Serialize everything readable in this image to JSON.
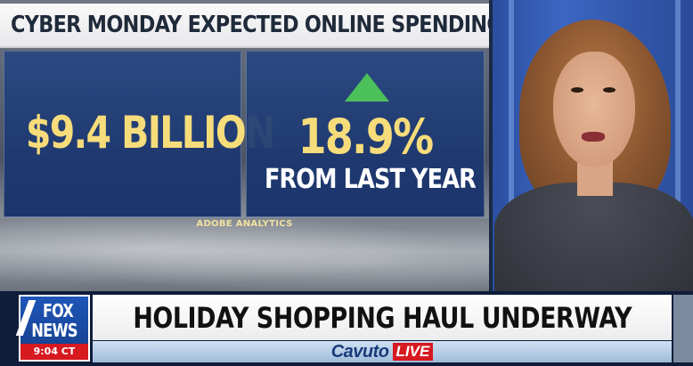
{
  "graphic": {
    "headline": "CYBER MONDAY EXPECTED ONLINE SPENDING",
    "amount": "$9.4 BILLION",
    "change_percent": "18.9%",
    "change_label": "FROM LAST YEAR",
    "trend_icon": "up-triangle-icon",
    "source": "ADOBE ANALYTICS"
  },
  "lower_third": {
    "logo_top": "FOX",
    "logo_bottom": "NEWS",
    "time": "9:04 CT",
    "headline": "HOLIDAY SHOPPING HAUL UNDERWAY",
    "show_name": "Cavuto",
    "show_tag": "LIVE"
  },
  "colors": {
    "accent_gold": "#f6dc7a",
    "panel_blue": "#1e3f84",
    "trend_green": "#4cc05a",
    "brand_red": "#d71920",
    "logo_blue": "#1f56b8"
  }
}
